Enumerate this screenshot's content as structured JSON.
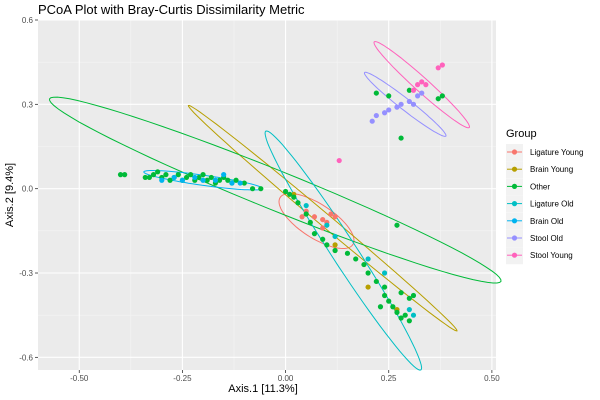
{
  "chart_data": {
    "type": "scatter",
    "title": "PCoA Plot with Bray-Curtis Dissimilarity Metric",
    "xlabel": "Axis.1   [11.3%]",
    "ylabel": "Axis.2   [9.4%]",
    "xlim": [
      -0.6,
      0.51
    ],
    "ylim": [
      -0.645,
      0.6
    ],
    "xticks": [
      -0.5,
      -0.25,
      0.0,
      0.25,
      0.5
    ],
    "xtick_labels": [
      "-0.50",
      "-0.25",
      "0.00",
      "0.25",
      "0.50"
    ],
    "yticks": [
      -0.6,
      -0.3,
      0.0,
      0.3,
      0.6
    ],
    "ytick_labels": [
      "-0.6",
      "-0.3",
      "0.0",
      "0.3",
      "0.6"
    ],
    "grid": true,
    "legend": {
      "title": "Group",
      "position": "right"
    },
    "series": [
      {
        "name": "Ligature Young",
        "color": "#F8766D",
        "points": [
          [
            0.04,
            -0.1
          ],
          [
            0.09,
            -0.11
          ],
          [
            0.1,
            -0.12
          ],
          [
            0.07,
            -0.1
          ],
          [
            0.11,
            -0.09
          ],
          [
            0.05,
            -0.08
          ],
          [
            0.09,
            -0.14
          ],
          [
            0.12,
            -0.1
          ]
        ],
        "ellipse": {
          "cx": 0.075,
          "cy": -0.115,
          "rx": 0.105,
          "ry": 0.06,
          "angle": -33
        }
      },
      {
        "name": "Brain Young",
        "color": "#B79F00",
        "points": [
          [
            0.02,
            -0.02
          ],
          [
            0.12,
            -0.2
          ],
          [
            0.2,
            -0.35
          ],
          [
            0.27,
            -0.43
          ]
        ],
        "ellipse": {
          "cx": 0.09,
          "cy": -0.105,
          "rx": 0.425,
          "ry": 0.022,
          "angle": -40
        }
      },
      {
        "name": "Other",
        "color": "#00BA38",
        "points": [
          [
            -0.4,
            0.05
          ],
          [
            -0.39,
            0.05
          ],
          [
            -0.34,
            0.04
          ],
          [
            -0.33,
            0.04
          ],
          [
            -0.32,
            0.05
          ],
          [
            -0.31,
            0.06
          ],
          [
            -0.3,
            0.04
          ],
          [
            -0.29,
            0.05
          ],
          [
            -0.28,
            0.03
          ],
          [
            -0.27,
            0.04
          ],
          [
            -0.26,
            0.05
          ],
          [
            -0.25,
            0.03
          ],
          [
            -0.24,
            0.04
          ],
          [
            -0.23,
            0.05
          ],
          [
            -0.22,
            0.03
          ],
          [
            -0.21,
            0.04
          ],
          [
            -0.2,
            0.05
          ],
          [
            -0.19,
            0.03
          ],
          [
            -0.18,
            0.04
          ],
          [
            -0.17,
            0.02
          ],
          [
            -0.16,
            0.03
          ],
          [
            -0.15,
            0.04
          ],
          [
            -0.14,
            0.03
          ],
          [
            -0.13,
            0.02
          ],
          [
            -0.12,
            0.03
          ],
          [
            -0.1,
            0.02
          ],
          [
            -0.08,
            0.0
          ],
          [
            -0.06,
            0.0
          ],
          [
            0.0,
            -0.01
          ],
          [
            0.01,
            -0.02
          ],
          [
            0.02,
            -0.03
          ],
          [
            0.03,
            -0.05
          ],
          [
            0.05,
            -0.09
          ],
          [
            0.06,
            -0.12
          ],
          [
            0.07,
            -0.16
          ],
          [
            0.09,
            -0.18
          ],
          [
            0.1,
            -0.2
          ],
          [
            0.12,
            -0.22
          ],
          [
            0.15,
            -0.23
          ],
          [
            0.17,
            -0.25
          ],
          [
            0.19,
            -0.27
          ],
          [
            0.2,
            -0.3
          ],
          [
            0.22,
            -0.33
          ],
          [
            0.24,
            -0.38
          ],
          [
            0.25,
            -0.4
          ],
          [
            0.26,
            -0.42
          ],
          [
            0.27,
            -0.44
          ],
          [
            0.28,
            -0.46
          ],
          [
            0.29,
            -0.45
          ],
          [
            0.3,
            -0.47
          ],
          [
            0.31,
            -0.38
          ],
          [
            0.3,
            -0.39
          ],
          [
            0.28,
            -0.37
          ],
          [
            0.24,
            -0.35
          ],
          [
            0.23,
            -0.42
          ],
          [
            0.27,
            -0.13
          ],
          [
            0.28,
            0.18
          ],
          [
            0.37,
            0.32
          ],
          [
            0.38,
            0.33
          ],
          [
            0.22,
            0.34
          ],
          [
            0.25,
            0.33
          ],
          [
            0.3,
            0.35
          ]
        ],
        "ellipse": {
          "cx": -0.025,
          "cy": -0.005,
          "rx": 0.59,
          "ry": 0.07,
          "angle": -22
        }
      },
      {
        "name": "Ligature Old",
        "color": "#00BFC4",
        "points": [
          [
            0.05,
            -0.06
          ],
          [
            0.1,
            -0.13
          ],
          [
            0.12,
            -0.17
          ],
          [
            0.2,
            -0.25
          ],
          [
            0.24,
            -0.3
          ],
          [
            0.3,
            -0.43
          ],
          [
            0.31,
            -0.45
          ]
        ],
        "ellipse": {
          "cx": 0.14,
          "cy": -0.22,
          "rx": 0.345,
          "ry": 0.045,
          "angle": -57
        }
      },
      {
        "name": "Brain Old",
        "color": "#00B4F0",
        "points": [
          [
            -0.3,
            0.03
          ],
          [
            -0.27,
            0.04
          ],
          [
            -0.25,
            0.03
          ],
          [
            -0.22,
            0.04
          ],
          [
            -0.2,
            0.03
          ],
          [
            -0.17,
            0.03
          ],
          [
            -0.15,
            0.05
          ],
          [
            -0.13,
            0.02
          ],
          [
            -0.11,
            0.02
          ]
        ],
        "ellipse": {
          "cx": -0.2,
          "cy": 0.03,
          "rx": 0.145,
          "ry": 0.018,
          "angle": -8
        }
      },
      {
        "name": "Stool Old",
        "color": "#9590FF",
        "points": [
          [
            0.21,
            0.24
          ],
          [
            0.22,
            0.26
          ],
          [
            0.24,
            0.27
          ],
          [
            0.25,
            0.28
          ],
          [
            0.27,
            0.29
          ],
          [
            0.28,
            0.3
          ],
          [
            0.3,
            0.31
          ],
          [
            0.31,
            0.3
          ],
          [
            0.32,
            0.33
          ],
          [
            0.33,
            0.34
          ]
        ],
        "ellipse": {
          "cx": 0.29,
          "cy": 0.3,
          "rx": 0.125,
          "ry": 0.02,
          "angle": -38
        }
      },
      {
        "name": "Stool Young",
        "color": "#FF62BC",
        "points": [
          [
            0.13,
            0.1
          ],
          [
            0.31,
            0.35
          ],
          [
            0.32,
            0.37
          ],
          [
            0.33,
            0.38
          ],
          [
            0.34,
            0.37
          ],
          [
            0.37,
            0.43
          ],
          [
            0.38,
            0.44
          ]
        ],
        "ellipse": {
          "cx": 0.33,
          "cy": 0.37,
          "rx": 0.155,
          "ry": 0.025,
          "angle": -42
        }
      }
    ]
  }
}
